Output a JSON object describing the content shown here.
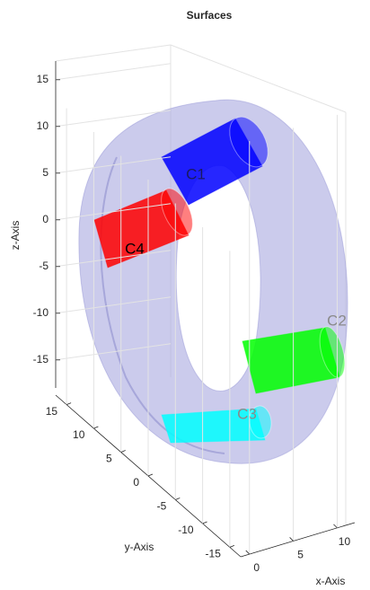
{
  "chart_data": {
    "type": "surface3d",
    "title": "Surfaces",
    "xlabel": "x-Axis",
    "ylabel": "y-Axis",
    "zlabel": "z-Axis",
    "xlim": [
      -1,
      12
    ],
    "ylim": [
      -17,
      17
    ],
    "zlim": [
      -18,
      17
    ],
    "xticks": [
      0,
      5,
      10
    ],
    "yticks": [
      -15,
      -10,
      -5,
      0,
      5,
      10,
      15
    ],
    "zticks": [
      -15,
      -10,
      -5,
      0,
      5,
      10,
      15
    ],
    "grid": true,
    "annotations": [
      {
        "text": "C1",
        "color": "#0000ff"
      },
      {
        "text": "C2",
        "color": "#00ff00"
      },
      {
        "text": "C3",
        "color": "#00ffff"
      },
      {
        "text": "C4",
        "color": "#ff0000"
      }
    ]
  }
}
